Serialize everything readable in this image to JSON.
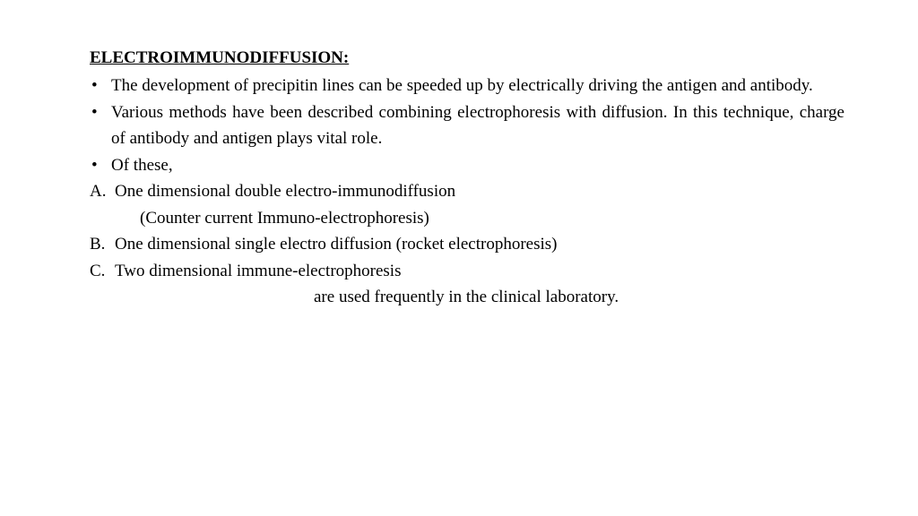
{
  "title": "ELECTROIMMUNODIFFUSION:",
  "bullets": [
    "The development of precipitin lines can be speeded up by electrically driving the antigen and antibody.",
    "Various methods have been described combining electrophoresis with diffusion.  In this technique, charge of antibody and antigen plays vital role.",
    "Of these,"
  ],
  "lettered": {
    "a": {
      "label": "A.",
      "text": "One dimensional double electro-immunodiffusion",
      "sub": "(Counter current Immuno-electrophoresis)"
    },
    "b": {
      "label": "B.",
      "text": "One dimensional single electro diffusion (rocket electrophoresis)"
    },
    "c": {
      "label": "C.",
      "text": "Two dimensional immune-electrophoresis"
    }
  },
  "closing": "are used frequently in the clinical laboratory.",
  "colors": {
    "text": "#000000",
    "background": "#ffffff"
  },
  "typography": {
    "fontsize_pt": 19,
    "title_weight": "bold",
    "title_underline": true,
    "family": "serif"
  }
}
